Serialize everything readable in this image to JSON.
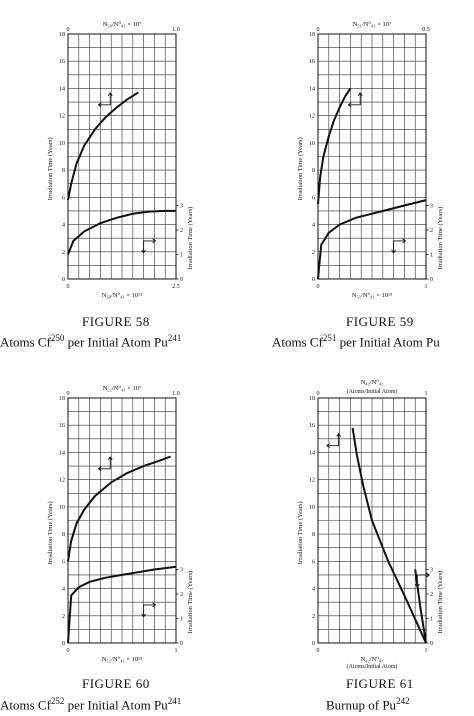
{
  "chart_data": [
    {
      "type": "line",
      "figure": "FIGURE 58",
      "caption": "Atoms Cf",
      "caption_sup1": "250",
      "caption_mid": " per Initial Atom Pu",
      "caption_sup2": "241",
      "top_label": "N₅₀/N⁰₄₁ × 10⁷",
      "bottom_label": "N₅₀/N⁰₄₁ × 10¹³",
      "left_label": "Irradiation Time (Years)",
      "right_label": "Irradiation Time (Years)",
      "left_ticks": [
        "0",
        "2",
        "4",
        "6",
        "8",
        "10",
        "12",
        "14",
        "16",
        "18"
      ],
      "right_ticks": [
        "0",
        "1",
        "2",
        "3"
      ],
      "top_ticks": [
        "0",
        "1.0"
      ],
      "bottom_ticks": [
        "0",
        "2.5"
      ],
      "ylim": [
        0,
        18
      ],
      "xlim": [
        0,
        10
      ],
      "series": [
        {
          "scale": "top-left",
          "x": [
            0.0,
            0.3,
            0.8,
            1.5,
            2.5,
            3.5,
            4.5,
            5.5,
            6.5
          ],
          "y": [
            5.8,
            7.0,
            8.5,
            9.8,
            11.0,
            11.9,
            12.6,
            13.2,
            13.7
          ]
        },
        {
          "scale": "bottom-right",
          "x": [
            0.0,
            0.5,
            1.5,
            3.0,
            4.5,
            6.0,
            7.5,
            9.0,
            10.0
          ],
          "y": [
            1.8,
            2.8,
            3.5,
            4.1,
            4.5,
            4.8,
            4.95,
            5.0,
            5.0
          ]
        }
      ]
    },
    {
      "type": "line",
      "figure": "FIGURE 59",
      "caption": "Atoms Cf",
      "caption_sup1": "251",
      "caption_mid": " per Initial Atom Pu",
      "caption_sup2": "",
      "top_label": "N₅₁/N⁰₄₁ × 10⁷",
      "bottom_label": "N₅₁/N⁰₄₁ × 10¹³",
      "left_label": "Irradiation Time (Years)",
      "right_label": "Irradiation Time (Years)",
      "left_ticks": [
        "0",
        "2",
        "4",
        "6",
        "8",
        "10",
        "12",
        "14",
        "16",
        "18"
      ],
      "right_ticks": [
        "0",
        "1",
        "2",
        "3"
      ],
      "top_ticks": [
        "0",
        "0.5"
      ],
      "bottom_ticks": [
        "0",
        "1"
      ],
      "ylim": [
        0,
        18
      ],
      "xlim": [
        0,
        10
      ],
      "series": [
        {
          "scale": "top-left",
          "x": [
            0.0,
            0.2,
            0.5,
            1.0,
            1.5,
            2.0,
            2.5,
            3.0
          ],
          "y": [
            5.5,
            7.5,
            9.0,
            10.5,
            11.7,
            12.6,
            13.4,
            14.0
          ]
        },
        {
          "scale": "bottom-right",
          "x": [
            0.0,
            0.3,
            1.0,
            2.0,
            3.5,
            5.0,
            6.5,
            8.0,
            10.0
          ],
          "y": [
            0.0,
            2.5,
            3.4,
            4.0,
            4.5,
            4.8,
            5.1,
            5.4,
            5.8
          ]
        }
      ]
    },
    {
      "type": "line",
      "figure": "FIGURE 60",
      "caption": "Atoms Cf",
      "caption_sup1": "252",
      "caption_mid": " per Initial Atom Pu",
      "caption_sup2": "241",
      "top_label": "N₅₂/N⁰₄₁ × 10⁷",
      "bottom_label": "N₅₂/N⁰₄₁ × 10¹³",
      "left_label": "Irradiation Time (Years)",
      "right_label": "Irradiation Time (Years)",
      "left_ticks": [
        "0",
        "2",
        "4",
        "6",
        "8",
        "10",
        "12",
        "14",
        "16",
        "18"
      ],
      "right_ticks": [
        "0",
        "1",
        "2",
        "3"
      ],
      "top_ticks": [
        "0",
        "1.0"
      ],
      "bottom_ticks": [
        "0",
        "1"
      ],
      "ylim": [
        0,
        18
      ],
      "xlim": [
        0,
        10
      ],
      "series": [
        {
          "scale": "top-left",
          "x": [
            0.0,
            0.3,
            0.8,
            1.5,
            2.5,
            4.0,
            5.5,
            7.0,
            8.5,
            9.5
          ],
          "y": [
            6.0,
            7.5,
            8.8,
            9.8,
            10.8,
            11.8,
            12.5,
            13.0,
            13.4,
            13.7
          ]
        },
        {
          "scale": "bottom-right",
          "x": [
            0.0,
            0.3,
            1.0,
            2.0,
            3.5,
            5.0,
            6.5,
            8.0,
            10.0
          ],
          "y": [
            0.0,
            3.5,
            4.1,
            4.5,
            4.8,
            5.0,
            5.2,
            5.4,
            5.6
          ]
        }
      ]
    },
    {
      "type": "line",
      "figure": "FIGURE 61",
      "caption": "Burnup of Pu",
      "caption_sup1": "242",
      "caption_mid": "",
      "caption_sup2": "",
      "top_label": "N₄₂/N⁰₄₂",
      "top_sub": "(Atoms/Initial Atom)",
      "bottom_label": "N₄₂/N⁰₄₂",
      "bottom_sub": "(Atoms/Initial Atom)",
      "left_label": "Irradiation Time (Years)",
      "right_label": "Irradiation Time (Years)",
      "left_ticks": [
        "0",
        "2",
        "4",
        "6",
        "8",
        "10",
        "12",
        "14",
        "16",
        "18"
      ],
      "right_ticks": [
        "0",
        "1",
        "2",
        "3"
      ],
      "top_ticks": [
        "0",
        "1"
      ],
      "bottom_ticks": [
        "0",
        "1"
      ],
      "ylim": [
        0,
        18
      ],
      "xlim": [
        0,
        10
      ],
      "series": [
        {
          "scale": "top-left",
          "x": [
            10.0,
            8.0,
            6.5,
            5.0,
            4.2,
            3.6,
            3.2
          ],
          "y": [
            0.0,
            3.5,
            6.0,
            9.0,
            11.5,
            13.8,
            15.8
          ]
        },
        {
          "scale": "bottom-right",
          "x": [
            10.0,
            9.5,
            9.0
          ],
          "y": [
            0.0,
            2.5,
            5.4
          ]
        }
      ]
    }
  ]
}
